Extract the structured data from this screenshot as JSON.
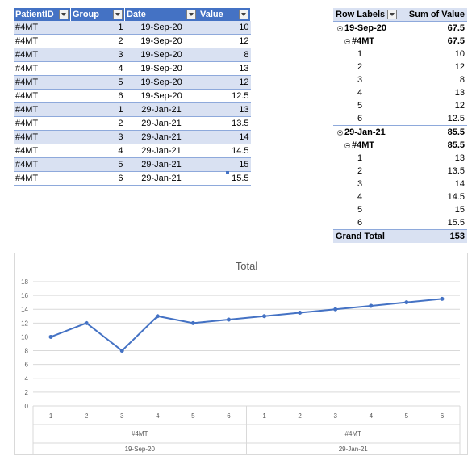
{
  "source_table": {
    "headers": [
      "PatientID",
      "Group",
      "Date",
      "Value"
    ],
    "rows": [
      [
        "#4MT",
        "1",
        "19-Sep-20",
        "10"
      ],
      [
        "#4MT",
        "2",
        "19-Sep-20",
        "12"
      ],
      [
        "#4MT",
        "3",
        "19-Sep-20",
        "8"
      ],
      [
        "#4MT",
        "4",
        "19-Sep-20",
        "13"
      ],
      [
        "#4MT",
        "5",
        "19-Sep-20",
        "12"
      ],
      [
        "#4MT",
        "6",
        "19-Sep-20",
        "12.5"
      ],
      [
        "#4MT",
        "1",
        "29-Jan-21",
        "13"
      ],
      [
        "#4MT",
        "2",
        "29-Jan-21",
        "13.5"
      ],
      [
        "#4MT",
        "3",
        "29-Jan-21",
        "14"
      ],
      [
        "#4MT",
        "4",
        "29-Jan-21",
        "14.5"
      ],
      [
        "#4MT",
        "5",
        "29-Jan-21",
        "15"
      ],
      [
        "#4MT",
        "6",
        "29-Jan-21",
        "15.5"
      ]
    ]
  },
  "pivot": {
    "header_label": "Row Labels",
    "header_value": "Sum of Value",
    "groups": [
      {
        "date": "19-Sep-20",
        "date_total": "67.5",
        "patient": "#4MT",
        "patient_total": "67.5",
        "items": [
          {
            "group": "1",
            "value": "10"
          },
          {
            "group": "2",
            "value": "12"
          },
          {
            "group": "3",
            "value": "8"
          },
          {
            "group": "4",
            "value": "13"
          },
          {
            "group": "5",
            "value": "12"
          },
          {
            "group": "6",
            "value": "12.5"
          }
        ]
      },
      {
        "date": "29-Jan-21",
        "date_total": "85.5",
        "patient": "#4MT",
        "patient_total": "85.5",
        "items": [
          {
            "group": "1",
            "value": "13"
          },
          {
            "group": "2",
            "value": "13.5"
          },
          {
            "group": "3",
            "value": "14"
          },
          {
            "group": "4",
            "value": "14.5"
          },
          {
            "group": "5",
            "value": "15"
          },
          {
            "group": "6",
            "value": "15.5"
          }
        ]
      }
    ],
    "grand_total_label": "Grand Total",
    "grand_total_value": "153"
  },
  "colors": {
    "table_header": "#4472c4",
    "band": "#d9e1f2",
    "series_line": "#4472c4"
  },
  "chart_data": {
    "type": "line",
    "title": "Total",
    "categories": [
      "1",
      "2",
      "3",
      "4",
      "5",
      "6",
      "1",
      "2",
      "3",
      "4",
      "5",
      "6"
    ],
    "category_groups": [
      {
        "patient": "#4MT",
        "date": "19-Sep-20",
        "count": 6
      },
      {
        "patient": "#4MT",
        "date": "29-Jan-21",
        "count": 6
      }
    ],
    "series": [
      {
        "values": [
          10,
          12,
          8,
          13,
          12,
          12.5,
          13,
          13.5,
          14,
          14.5,
          15,
          15.5
        ]
      }
    ],
    "ylim": [
      0,
      18
    ],
    "yticks": [
      "0",
      "2",
      "4",
      "6",
      "8",
      "10",
      "12",
      "14",
      "16",
      "18"
    ],
    "grid": true,
    "legend": "none"
  }
}
